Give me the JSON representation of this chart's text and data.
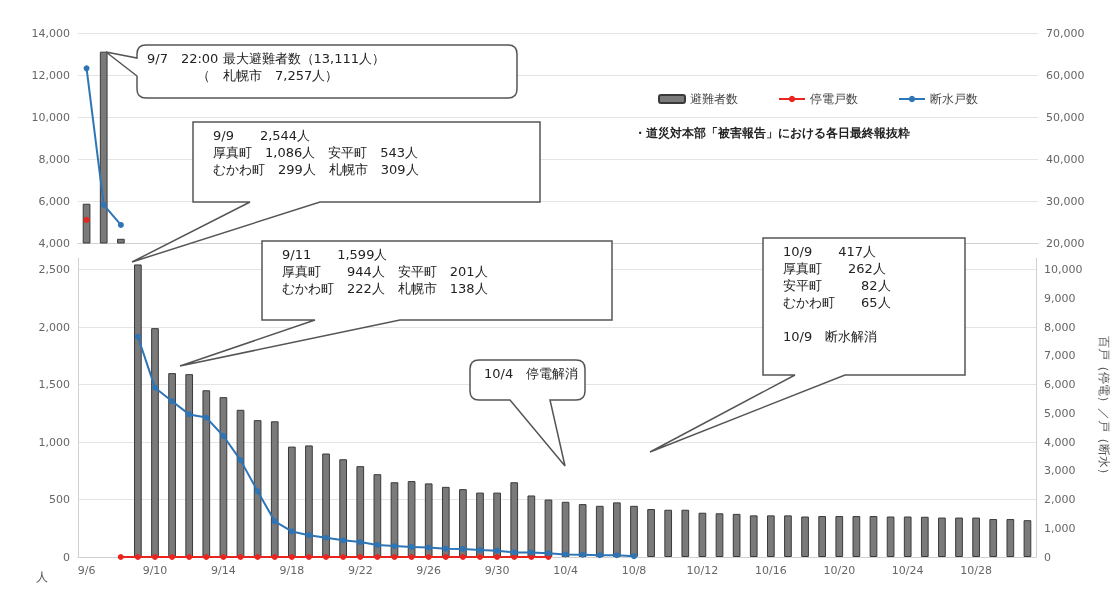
{
  "chart_data": [
    {
      "type": "bar",
      "categories": [
        null,
        null,
        null,
        null,
        null,
        null,
        null,
        null,
        null,
        null,
        null,
        null,
        null,
        null,
        null,
        null,
        null,
        null,
        null,
        null,
        null,
        null,
        null,
        null,
        null,
        null,
        null,
        null,
        null,
        null,
        null,
        null,
        null,
        null,
        null,
        null,
        null,
        null,
        null,
        null,
        null,
        null,
        null,
        null,
        null,
        null,
        null,
        null,
        null,
        null,
        null,
        null,
        null,
        null,
        null,
        null
      ],
      "series": [
        {
          "name": "避難者数",
          "color": "#7a7a7a",
          "values": [
            5870,
            13111,
            4200,
            null,
            null,
            null,
            null,
            null,
            null,
            null,
            null,
            null,
            null,
            null,
            null,
            null,
            null,
            null,
            null,
            null,
            null,
            null,
            null,
            null,
            null,
            null,
            null,
            null,
            null,
            null,
            null,
            null,
            null,
            null,
            null,
            null,
            null,
            null,
            null,
            null,
            null,
            null,
            null,
            null,
            null,
            null,
            null,
            null,
            null,
            null,
            null,
            null,
            null,
            null,
            null,
            null
          ]
        },
        {
          "name": "停電戸数",
          "type": "line",
          "axis": "y2",
          "color": "#e8251e",
          "values": [
            25500,
            null,
            null,
            null,
            null,
            null,
            null,
            null,
            null,
            null,
            null,
            null,
            null,
            null,
            null,
            null,
            null,
            null,
            null,
            null,
            null,
            null,
            null,
            null,
            null,
            null,
            null,
            null,
            null,
            null,
            null,
            null,
            null,
            null,
            null,
            null,
            null,
            null,
            null,
            null,
            null,
            null,
            null,
            null,
            null,
            null,
            null,
            null,
            null,
            null,
            null,
            null,
            null,
            null,
            null,
            null
          ]
        },
        {
          "name": "断水戸数",
          "type": "line",
          "axis": "y2",
          "color": "#2e75b6",
          "values": [
            61600,
            29100,
            24300,
            null,
            null,
            null,
            null,
            null,
            null,
            null,
            null,
            null,
            null,
            null,
            null,
            null,
            null,
            null,
            null,
            null,
            null,
            null,
            null,
            null,
            null,
            null,
            null,
            null,
            null,
            null,
            null,
            null,
            null,
            null,
            null,
            null,
            null,
            null,
            null,
            null,
            null,
            null,
            null,
            null,
            null,
            null,
            null,
            null,
            null,
            null,
            null,
            null,
            null,
            null,
            null,
            null
          ]
        }
      ],
      "ylim": [
        4000,
        14000
      ],
      "yticks": [
        {
          "value": 4000,
          "label": "4,000"
        },
        {
          "value": 6000,
          "label": "6,000"
        },
        {
          "value": 8000,
          "label": "8,000"
        },
        {
          "value": 10000,
          "label": "10,000"
        },
        {
          "value": 12000,
          "label": "12,000"
        },
        {
          "value": 14000,
          "label": "14,000"
        }
      ],
      "y2lim": [
        20000,
        70000
      ],
      "y2ticks": [
        {
          "value": 20000,
          "label": "20,000"
        },
        {
          "value": 30000,
          "label": "30,000"
        },
        {
          "value": 40000,
          "label": "40,000"
        },
        {
          "value": 50000,
          "label": "50,000"
        },
        {
          "value": 60000,
          "label": "60,000"
        },
        {
          "value": 70000,
          "label": "70,000"
        }
      ],
      "tick_labels": "y",
      "grid": "y",
      "legend": "top right",
      "marker": "circle",
      "annotations": [
        "9/7　22:00 最大避難者数（13,111人）",
        "（　札幌市　7,257人）",
        "9/9　　2,544人",
        "厚真町　1,086人　安平町　543人",
        "むかわ町　299人　札幌市　309人",
        "・道災対本部「被害報告」における各日最終報抜粋"
      ]
    },
    {
      "type": "bar",
      "categories": [
        "9/6",
        null,
        null,
        null,
        "9/10",
        null,
        null,
        null,
        "9/14",
        null,
        null,
        null,
        "9/18",
        null,
        null,
        null,
        "9/22",
        null,
        null,
        null,
        "9/26",
        null,
        null,
        null,
        "9/30",
        null,
        null,
        null,
        "10/4",
        null,
        null,
        null,
        "10/8",
        null,
        null,
        null,
        "10/12",
        null,
        null,
        null,
        "10/16",
        null,
        null,
        null,
        "10/20",
        null,
        null,
        null,
        "10/24",
        null,
        null,
        null,
        "10/28",
        null,
        null,
        null
      ],
      "series": [
        {
          "color": "#7a7a7a",
          "values": [
            null,
            null,
            null,
            2544,
            1990,
            1599,
            1590,
            1450,
            1390,
            1280,
            1190,
            1180,
            960,
            970,
            900,
            850,
            790,
            720,
            650,
            660,
            640,
            610,
            590,
            560,
            560,
            650,
            535,
            500,
            480,
            460,
            445,
            475,
            445,
            417,
            411,
            411,
            385,
            380,
            375,
            362,
            362,
            362,
            352,
            356,
            356,
            356,
            356,
            352,
            352,
            350,
            343,
            343,
            343,
            330,
            330,
            320
          ]
        },
        {
          "type": "line",
          "axis": "y2",
          "color": "#e8251e",
          "values": [
            null,
            null,
            0,
            0,
            0,
            0,
            0,
            0,
            0,
            0,
            0,
            0,
            0,
            0,
            0,
            0,
            0,
            0,
            0,
            0,
            0,
            0,
            0,
            0,
            0,
            0,
            0,
            0,
            null,
            null,
            null,
            null,
            null,
            null,
            null,
            null,
            null,
            null,
            null,
            null,
            null,
            null,
            null,
            null,
            null,
            null,
            null,
            null,
            null,
            null,
            null,
            null,
            null,
            null,
            null,
            null
          ]
        },
        {
          "type": "line",
          "axis": "y2",
          "color": "#2e75b6",
          "values": [
            null,
            null,
            null,
            7660,
            5890,
            5420,
            4960,
            4850,
            4210,
            3370,
            2290,
            1240,
            890,
            760,
            670,
            580,
            520,
            420,
            380,
            350,
            330,
            290,
            280,
            240,
            220,
            160,
            160,
            130,
            90,
            80,
            60,
            60,
            30,
            null,
            null,
            null,
            null,
            null,
            null,
            null,
            null,
            null,
            null,
            null,
            null,
            null,
            null,
            null,
            null,
            null,
            null,
            null,
            null,
            null,
            null,
            null
          ]
        }
      ],
      "ylim": [
        0,
        2600
      ],
      "yticks": [
        0,
        500,
        {
          "value": 1000,
          "label": "1,000"
        },
        {
          "value": 1500,
          "label": "1,500"
        },
        {
          "value": 2000,
          "label": "2,000"
        },
        {
          "value": 2500,
          "label": "2,500"
        }
      ],
      "y2lim": [
        0,
        10400
      ],
      "y2ticks": [
        0,
        {
          "value": 1000,
          "label": "1,000"
        },
        {
          "value": 2000,
          "label": "2,000"
        },
        {
          "value": 3000,
          "label": "3,000"
        },
        {
          "value": 4000,
          "label": "4,000"
        },
        {
          "value": 5000,
          "label": "5,000"
        },
        {
          "value": 6000,
          "label": "6,000"
        },
        {
          "value": 7000,
          "label": "7,000"
        },
        {
          "value": 8000,
          "label": "8,000"
        },
        {
          "value": 9000,
          "label": "9,000"
        },
        {
          "value": 10000,
          "label": "10,000"
        }
      ],
      "ylabel": "人",
      "y2label": "百戸（停電）／戸（断水）",
      "grid": "y",
      "marker": "circle",
      "annotations": [
        "9/11　　1,599人",
        "厚真町　　944人　安平町　201人",
        "むかわ町　222人　札幌市　138人",
        "10/4　停電解消",
        "10/9　　417人",
        "厚真町　　262人",
        "安平町　　　82人",
        "むかわ町　　65人",
        "10/9　断水解消"
      ]
    }
  ]
}
